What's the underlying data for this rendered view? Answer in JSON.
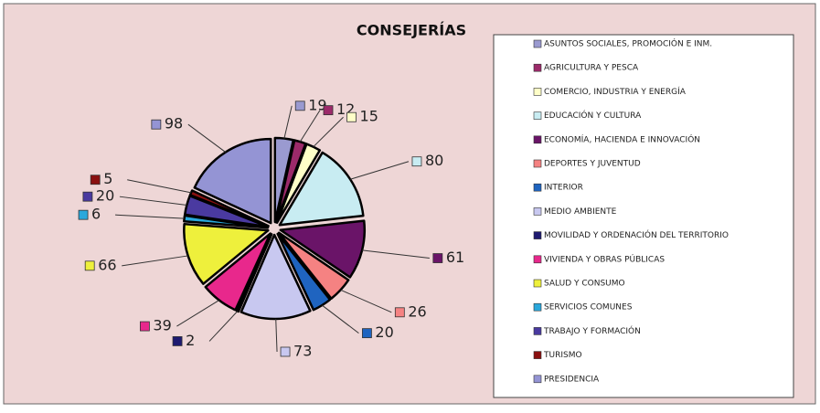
{
  "chart_data": {
    "type": "pie",
    "title": "CONSEJERÍAS",
    "categories": [
      "ASUNTOS SOCIALES, PROMOCIÓN E INM.",
      "AGRICULTURA Y PESCA",
      "COMERCIO, INDUSTRIA Y ENERGÍA",
      "EDUCACIÓN Y CULTURA",
      "ECONOMÍA, HACIENDA E  INNOVACIÓN",
      "DEPORTES Y JUVENTUD",
      "INTERIOR",
      "MEDIO AMBIENTE",
      "MOVILIDAD Y ORDENACIÓN DEL TERRITORIO",
      "VIVIENDA Y OBRAS PÚBLICAS",
      "SALUD Y CONSUMO",
      "SERVICIOS COMUNES",
      "TRABAJO Y FORMACIÓN",
      "TURISMO",
      "PRESIDENCIA"
    ],
    "values": [
      19,
      12,
      15,
      80,
      61,
      26,
      20,
      73,
      2,
      39,
      66,
      6,
      20,
      5,
      98
    ],
    "colors": [
      "#9a9ad0",
      "#9c2a6a",
      "#ffffc8",
      "#c8ecf2",
      "#6a1468",
      "#f58282",
      "#1f64c0",
      "#c8c8f0",
      "#1e1a70",
      "#e8288c",
      "#eef03c",
      "#2aa8dc",
      "#4a3aa0",
      "#8a1010",
      "#9494d4"
    ],
    "legend": "right"
  }
}
